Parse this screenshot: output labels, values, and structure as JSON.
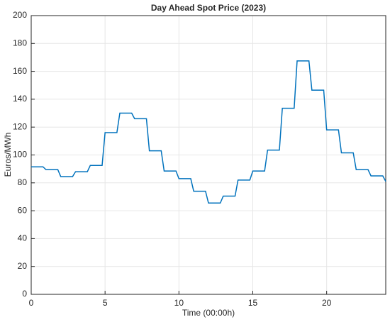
{
  "chart_data": {
    "type": "line",
    "title": "Day Ahead Spot Price (2023)",
    "x_label": "Time (00:00h)",
    "y_label": "Euros/MWh",
    "x": [
      0,
      0.8,
      1,
      1.8,
      2,
      2.8,
      3,
      3.8,
      4,
      4.8,
      5,
      5.8,
      6,
      6.8,
      7,
      7.8,
      8,
      8.8,
      9,
      9.8,
      10,
      10.8,
      11,
      11.8,
      12,
      12.8,
      13,
      13.8,
      14,
      14.8,
      15,
      15.8,
      16,
      16.8,
      17,
      17.8,
      18,
      18.8,
      19,
      19.8,
      20,
      20.8,
      21,
      21.8,
      22,
      22.8,
      23,
      23.8,
      24
    ],
    "series": [
      {
        "color": "#0072bd",
        "values": [
          91.5,
          91.5,
          89.5,
          89.5,
          84.5,
          84.5,
          88,
          88,
          92.5,
          92.5,
          116,
          116,
          130,
          130,
          126,
          126,
          103,
          103,
          88.5,
          88.5,
          83,
          83,
          74,
          74,
          65.5,
          65.5,
          70.5,
          70.5,
          82,
          82,
          88.5,
          88.5,
          103.5,
          103.5,
          133.5,
          133.5,
          167.5,
          167.5,
          146.5,
          146.5,
          118,
          118,
          101.5,
          101.5,
          89.5,
          89.5,
          85,
          85,
          81
        ]
      }
    ],
    "xlim": [
      0,
      24
    ],
    "xticks": [
      0,
      5,
      10,
      15,
      20
    ],
    "ylim": [
      0,
      200
    ],
    "yticks": [
      0,
      20,
      40,
      60,
      80,
      100,
      120,
      140,
      160,
      180,
      200
    ],
    "grid": true
  }
}
